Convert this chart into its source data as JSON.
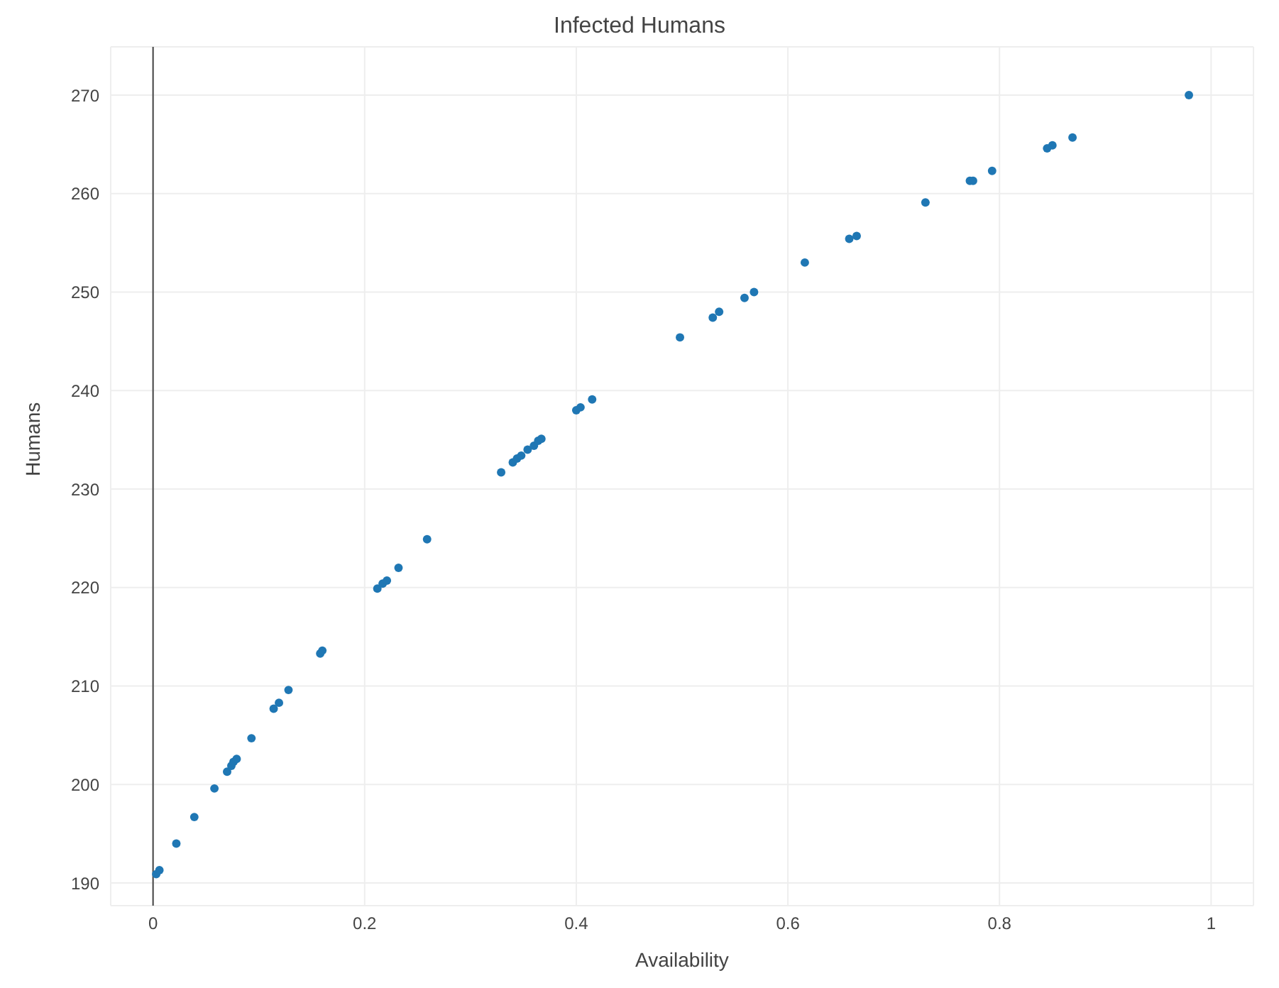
{
  "chart_data": {
    "type": "scatter",
    "title": "Infected Humans",
    "xlabel": "Availability",
    "ylabel": "Humans",
    "x": [
      0.003,
      0.006,
      0.022,
      0.039,
      0.058,
      0.07,
      0.074,
      0.076,
      0.079,
      0.093,
      0.114,
      0.119,
      0.128,
      0.158,
      0.16,
      0.212,
      0.217,
      0.221,
      0.232,
      0.259,
      0.329,
      0.34,
      0.344,
      0.348,
      0.354,
      0.36,
      0.364,
      0.367,
      0.4,
      0.404,
      0.415,
      0.498,
      0.529,
      0.535,
      0.559,
      0.568,
      0.616,
      0.658,
      0.665,
      0.73,
      0.772,
      0.775,
      0.793,
      0.845,
      0.85,
      0.869,
      0.979
    ],
    "values": [
      190.9,
      191.3,
      194.0,
      196.7,
      199.6,
      201.3,
      201.9,
      202.3,
      202.6,
      204.7,
      207.7,
      208.3,
      209.6,
      213.3,
      213.6,
      219.9,
      220.4,
      220.7,
      222.0,
      224.9,
      231.7,
      232.7,
      233.1,
      233.4,
      234.0,
      234.4,
      234.9,
      235.1,
      238.0,
      238.3,
      239.1,
      245.4,
      247.4,
      248.0,
      249.4,
      250.0,
      253.0,
      255.4,
      255.7,
      259.1,
      261.3,
      261.3,
      262.3,
      264.6,
      264.9,
      265.7,
      270.0
    ],
    "color": "#1f77b4",
    "marker": "circle",
    "grid": true,
    "xlim": [
      -0.04,
      1.04
    ],
    "xticks": [
      0,
      0.2,
      0.4,
      0.6,
      0.8,
      1
    ],
    "ylim": [
      187.7,
      274.9
    ],
    "yticks": [
      190,
      200,
      210,
      220,
      230,
      240,
      250,
      260,
      270
    ],
    "ref_lines": [
      {
        "axis": "x",
        "value": 0,
        "color": "#444444"
      }
    ]
  }
}
